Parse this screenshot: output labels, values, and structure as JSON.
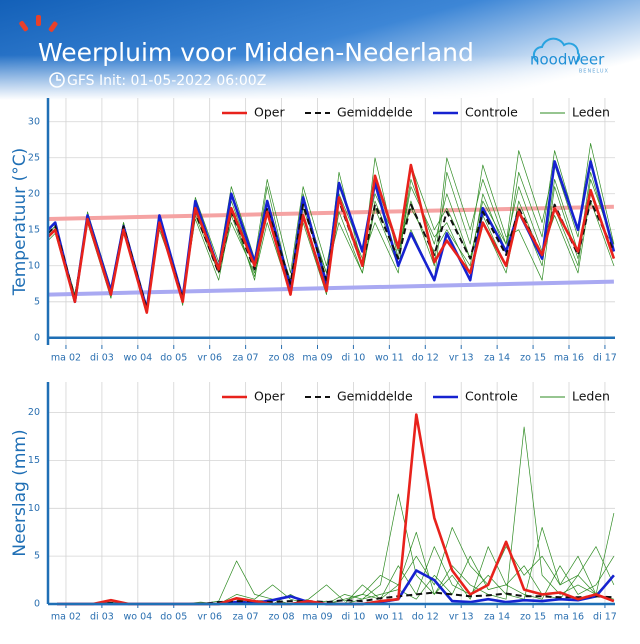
{
  "header": {
    "title": "Weerpluim voor Midden-Nederland",
    "subtitle": "GFS Init: 01-05-2022 06:00Z",
    "logo": "noodweer",
    "logo_sub": "BENELUX"
  },
  "chart_data": [
    {
      "type": "line",
      "ylabel": "Temperatuur (°C)",
      "grid": true,
      "x": [
        -0.5,
        -0.3,
        0.25,
        0.6,
        1.25,
        1.6,
        2.25,
        2.6,
        3.25,
        3.6,
        4.25,
        4.6,
        5.25,
        5.6,
        6.25,
        6.6,
        7.25,
        7.6,
        8.25,
        8.6,
        9.25,
        9.6,
        10.25,
        10.6,
        11.25,
        11.6,
        12.25,
        12.6,
        13.25,
        13.6,
        14.25,
        14.6,
        15.25
      ],
      "xlim": [
        -0.5,
        15.28
      ],
      "xticks": [
        {
          "value": 0,
          "label": "ma 02"
        },
        {
          "value": 1,
          "label": "di 03"
        },
        {
          "value": 2,
          "label": "wo 04"
        },
        {
          "value": 3,
          "label": "do 05"
        },
        {
          "value": 4,
          "label": "vr 06"
        },
        {
          "value": 5,
          "label": "za 07"
        },
        {
          "value": 6,
          "label": "zo 08"
        },
        {
          "value": 7,
          "label": "ma 09"
        },
        {
          "value": 8,
          "label": "di 10"
        },
        {
          "value": 9,
          "label": "wo 11"
        },
        {
          "value": 10,
          "label": "do 12"
        },
        {
          "value": 11,
          "label": "vr 13"
        },
        {
          "value": 12,
          "label": "za 14"
        },
        {
          "value": 13,
          "label": "zo 15"
        },
        {
          "value": 14,
          "label": "ma 16"
        },
        {
          "value": 15,
          "label": "di 17"
        }
      ],
      "ylim": [
        -1,
        33.3
      ],
      "yticks": [
        0,
        5,
        10,
        15,
        20,
        25,
        30
      ],
      "normal_lines": [
        {
          "color": "#f5a3a3",
          "x": [
            -0.5,
            15.25
          ],
          "values": [
            16.5,
            18.2
          ]
        },
        {
          "color": "#a9a9f2",
          "x": [
            -0.5,
            15.25
          ],
          "values": [
            6,
            7.8
          ]
        }
      ],
      "series": [
        {
          "name": "Oper",
          "color": "#e8221c",
          "style": "solid",
          "values": [
            14,
            15,
            5,
            16.5,
            6,
            15,
            3.5,
            16,
            5,
            18,
            9.5,
            18,
            10,
            17.5,
            6,
            17,
            6.5,
            19.5,
            10,
            22.5,
            12.5,
            24,
            10.5,
            13.5,
            9,
            16,
            10,
            17.5,
            11.5,
            18,
            12,
            20.5,
            11
          ]
        },
        {
          "name": "Gemiddelde",
          "color": "#111111",
          "style": "dashed",
          "values": [
            14.5,
            15.5,
            5.5,
            16.5,
            6,
            15.5,
            4,
            16,
            5.5,
            17.5,
            9,
            17.5,
            9.5,
            18,
            7.5,
            18.5,
            8,
            19,
            10,
            18.5,
            11,
            18.5,
            11.5,
            17.5,
            11,
            17.5,
            11.5,
            18,
            11.5,
            18.5,
            11.5,
            19,
            12
          ]
        },
        {
          "name": "Controle",
          "color": "#1622d0",
          "style": "solid",
          "values": [
            15,
            16,
            5,
            17,
            6.5,
            15.5,
            4,
            17,
            5.5,
            19,
            9.5,
            20,
            10.5,
            19,
            7,
            19.5,
            7.5,
            21.5,
            12,
            21.5,
            10,
            14.5,
            8,
            14.5,
            8,
            18,
            12,
            17.5,
            11,
            24.5,
            15,
            24.5,
            12
          ]
        },
        {
          "name": "Leden",
          "color": "#2e8b22",
          "style": "thin",
          "members": [
            [
              14,
              15,
              5.5,
              16,
              6.5,
              16,
              4,
              15.5,
              6,
              17,
              9,
              16,
              9,
              17,
              8,
              19,
              9,
              21,
              12,
              20,
              13,
              18,
              12,
              15,
              10,
              20,
              12,
              23,
              14,
              26,
              15,
              27,
              13
            ],
            [
              13.5,
              14.5,
              5,
              17,
              5.5,
              15.5,
              3.5,
              16.5,
              5,
              18.5,
              10,
              19,
              10,
              21,
              7,
              20,
              8,
              23,
              10,
              25,
              11,
              22,
              13,
              20,
              11,
              16,
              9,
              18,
              10,
              22,
              12,
              19,
              10
            ],
            [
              14.5,
              15.5,
              6,
              16.5,
              6,
              14.5,
              4.5,
              16,
              5.5,
              16.5,
              8,
              17,
              8.5,
              16,
              6,
              17,
              7,
              17.5,
              9,
              18,
              10,
              15,
              8,
              23,
              13,
              24,
              14,
              15,
              8,
              21,
              11,
              23,
              12
            ],
            [
              15,
              16,
              5,
              17.5,
              7,
              16,
              3.5,
              17,
              4.5,
              19.5,
              10.5,
              21,
              11,
              22,
              9,
              21,
              10,
              19,
              11,
              16,
              9,
              24,
              15,
              18,
              11,
              19,
              13,
              21,
              12,
              17,
              9,
              20,
              11
            ],
            [
              14,
              15,
              6,
              16,
              5.5,
              15,
              4,
              15,
              6,
              17.5,
              9.5,
              18,
              8,
              19,
              7.5,
              16,
              6,
              20,
              12,
              22,
              12,
              19,
              10,
              25,
              15,
              22,
              13,
              26,
              16,
              24,
              14,
              25,
              12
            ],
            [
              14.5,
              15.5,
              5.5,
              17,
              6,
              16,
              4,
              16,
              5,
              18,
              9,
              17.5,
              10,
              18,
              8,
              18,
              9,
              16,
              9,
              19,
              11,
              21,
              14,
              16,
              9,
              17,
              10,
              19,
              11,
              18,
              10,
              22,
              13
            ]
          ]
        }
      ]
    },
    {
      "type": "line",
      "ylabel": "Neerslag (mm)",
      "grid": true,
      "x": [
        -0.25,
        0.25,
        0.75,
        1.25,
        1.75,
        2.25,
        2.75,
        3.25,
        3.75,
        4.25,
        4.75,
        5.25,
        5.75,
        6.25,
        6.75,
        7.25,
        7.75,
        8.25,
        8.75,
        9.25,
        9.75,
        10.25,
        10.75,
        11.25,
        11.75,
        12.25,
        12.75,
        13.25,
        13.75,
        14.25,
        14.75,
        15.25
      ],
      "xlim": [
        -0.5,
        15.28
      ],
      "xticks": [
        {
          "value": 0,
          "label": "ma 02"
        },
        {
          "value": 1,
          "label": "di 03"
        },
        {
          "value": 2,
          "label": "wo 04"
        },
        {
          "value": 3,
          "label": "do 05"
        },
        {
          "value": 4,
          "label": "vr 06"
        },
        {
          "value": 5,
          "label": "za 07"
        },
        {
          "value": 6,
          "label": "zo 08"
        },
        {
          "value": 7,
          "label": "ma 09"
        },
        {
          "value": 8,
          "label": "di 10"
        },
        {
          "value": 9,
          "label": "wo 11"
        },
        {
          "value": 10,
          "label": "do 12"
        },
        {
          "value": 11,
          "label": "vr 13"
        },
        {
          "value": 12,
          "label": "za 14"
        },
        {
          "value": 13,
          "label": "zo 15"
        },
        {
          "value": 14,
          "label": "ma 16"
        },
        {
          "value": 15,
          "label": "di 17"
        }
      ],
      "ylim": [
        0,
        23.2
      ],
      "yticks": [
        0,
        5,
        10,
        15,
        20
      ],
      "series": [
        {
          "name": "Oper",
          "color": "#e8221c",
          "style": "solid",
          "values": [
            0,
            0,
            0,
            0.4,
            0,
            0,
            0,
            0,
            0,
            0,
            0.6,
            0.3,
            0,
            0,
            0.3,
            0,
            0,
            0,
            0.3,
            0.5,
            19.8,
            9,
            3.5,
            1,
            2,
            6.5,
            1.5,
            1,
            1.2,
            0.5,
            1,
            0.3
          ]
        },
        {
          "name": "Gemiddelde",
          "color": "#111111",
          "style": "dashed",
          "values": [
            0,
            0,
            0,
            0.1,
            0,
            0,
            0,
            0,
            0,
            0.2,
            0.3,
            0.3,
            0.2,
            0.3,
            0.3,
            0.2,
            0.4,
            0.3,
            0.6,
            0.8,
            1,
            1.2,
            1,
            0.8,
            0.9,
            1.1,
            0.8,
            0.8,
            0.7,
            0.7,
            0.8,
            0.7
          ]
        },
        {
          "name": "Controle",
          "color": "#1622d0",
          "style": "solid",
          "values": [
            0,
            0,
            0,
            0,
            0,
            0,
            0,
            0,
            0,
            0,
            0.2,
            0.1,
            0.4,
            0.8,
            0.2,
            0,
            0,
            0,
            0.2,
            0.5,
            3.5,
            2.5,
            0.3,
            0.2,
            0.5,
            0.2,
            0.4,
            0.3,
            0.5,
            0.4,
            0.8,
            3
          ]
        },
        {
          "name": "Leden",
          "color": "#2e8b22",
          "style": "thin",
          "members": [
            [
              0,
              0,
              0,
              0,
              0,
              0,
              0,
              0,
              0,
              0,
              1,
              0.5,
              2,
              0.5,
              0,
              0,
              1,
              0.5,
              2,
              11.5,
              3,
              1,
              4,
              2,
              1,
              0.5,
              18.5,
              3,
              1,
              2,
              1,
              0.5
            ],
            [
              0,
              0,
              0,
              0.2,
              0,
              0,
              0,
              0,
              0,
              0.3,
              4.5,
              1,
              0.5,
              0,
              0.5,
              2,
              0.3,
              1,
              3,
              2,
              5,
              2,
              8,
              4,
              2,
              6,
              3,
              5,
              2,
              3,
              1,
              9.5
            ],
            [
              0,
              0,
              0,
              0,
              0,
              0,
              0,
              0,
              0.2,
              0,
              0.5,
              0,
              0,
              1,
              0,
              0.3,
              0,
              2,
              0.5,
              4,
              1,
              6,
              2,
              1,
              3,
              1,
              0.5,
              8,
              2,
              5,
              1,
              3
            ],
            [
              0,
              0,
              0,
              0,
              0,
              0,
              0,
              0,
              0,
              0,
              0,
              0.3,
              0,
              0,
              0.2,
              0,
              0.5,
              1,
              0.5,
              2,
              7.5,
              1,
              3,
              0.5,
              6,
              2,
              4,
              1,
              0.5,
              3,
              6,
              2
            ],
            [
              0,
              0,
              0,
              0,
              0,
              0,
              0,
              0,
              0,
              0,
              0.2,
              0,
              0,
              0,
              0,
              0,
              0,
              0.5,
              1,
              1.5,
              0.5,
              3,
              1,
              5,
              1.5,
              2,
              1,
              0.5,
              4,
              1,
              2,
              5
            ]
          ]
        }
      ]
    }
  ]
}
